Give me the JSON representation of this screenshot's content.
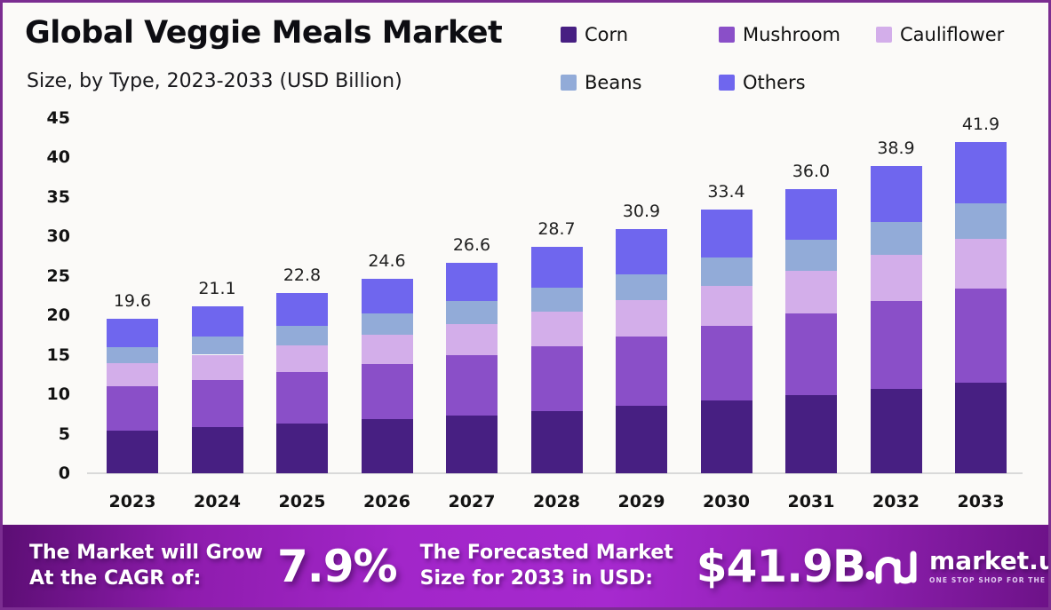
{
  "header": {
    "title": "Global Veggie Meals Market",
    "subtitle": "Size, by Type, 2023-2033 (USD Billion)"
  },
  "chart_data": {
    "type": "bar",
    "stacked": true,
    "title": "Global Veggie Meals Market",
    "subtitle": "Size, by Type, 2023-2033 (USD Billion)",
    "unit": "USD Billion",
    "categories": [
      "2023",
      "2024",
      "2025",
      "2026",
      "2027",
      "2028",
      "2029",
      "2030",
      "2031",
      "2032",
      "2033"
    ],
    "series": [
      {
        "name": "Corn",
        "color": "#471f82",
        "values": [
          5.4,
          5.8,
          6.3,
          6.8,
          7.3,
          7.9,
          8.5,
          9.2,
          9.9,
          10.7,
          11.5
        ]
      },
      {
        "name": "Mushroom",
        "color": "#8a4fc8",
        "values": [
          5.6,
          6.0,
          6.5,
          7.0,
          7.6,
          8.2,
          8.8,
          9.5,
          10.3,
          11.1,
          11.9
        ]
      },
      {
        "name": "Cauliflower",
        "color": "#d3aeea",
        "values": [
          2.9,
          3.2,
          3.4,
          3.7,
          4.0,
          4.3,
          4.6,
          5.0,
          5.4,
          5.8,
          6.3
        ]
      },
      {
        "name": "Beans",
        "color": "#92abd8",
        "values": [
          2.1,
          2.3,
          2.5,
          2.7,
          2.9,
          3.1,
          3.3,
          3.6,
          3.9,
          4.2,
          4.5
        ]
      },
      {
        "name": "Others",
        "color": "#6f66ee",
        "values": [
          3.6,
          3.8,
          4.1,
          4.4,
          4.8,
          5.2,
          5.7,
          6.1,
          6.5,
          7.1,
          7.7
        ]
      }
    ],
    "totals_labels": [
      "19.6",
      "21.1",
      "22.8",
      "24.6",
      "26.6",
      "28.7",
      "30.9",
      "33.4",
      "36.0",
      "38.9",
      "41.9"
    ],
    "xlabel": "",
    "ylabel": "",
    "ylim": [
      0,
      45
    ],
    "ytick_step": 5,
    "grid": false,
    "legend_position": "top-right"
  },
  "banner": {
    "cagr_label_line1": "The Market will Grow",
    "cagr_label_line2": "At the CAGR of:",
    "cagr_value": "7.9%",
    "forecast_label_line1": "The Forecasted Market",
    "forecast_label_line2": "Size for 2033 in USD:",
    "forecast_value": "$41.9B",
    "logo_text": "market.us",
    "logo_tagline": "ONE STOP SHOP FOR THE REPORTS"
  },
  "colors": {
    "frame_border": "#7b2d91",
    "axis_line": "#d9d9d9",
    "background": "#fbfaf8",
    "banner_gradient_start": "#5c0e74",
    "banner_gradient_mid": "#a629cf",
    "banner_gradient_end": "#6d1288",
    "text": "#111111"
  }
}
